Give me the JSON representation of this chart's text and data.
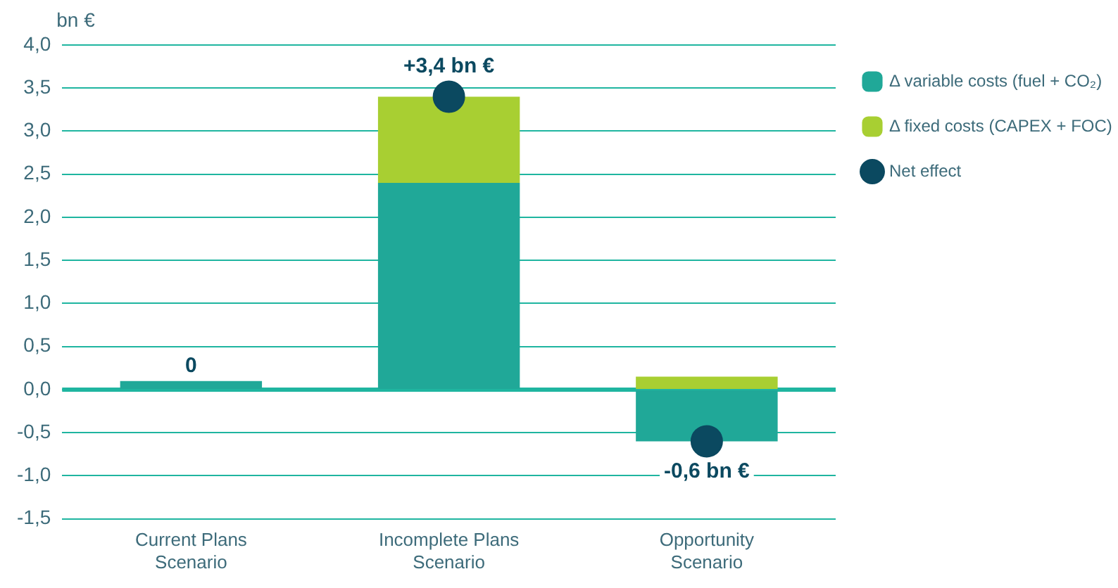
{
  "chart_data": {
    "type": "bar",
    "stacked": true,
    "ylabel": "bn €",
    "categories": [
      "Current Plans Scenario",
      "Incomplete Plans Scenario",
      "Opportunity Scenario"
    ],
    "series": [
      {
        "name": "Δ variable costs (fuel + CO₂)",
        "color": "#20a898",
        "values": [
          0.1,
          2.4,
          -0.6
        ]
      },
      {
        "name": "Δ fixed costs (CAPEX + FOC)",
        "color": "#a8cf32",
        "values": [
          0,
          1.0,
          0.15
        ]
      },
      {
        "name": "Net effect",
        "type": "scatter",
        "color": "#0b4960",
        "values": [
          null,
          3.4,
          -0.6
        ],
        "value_labels": [
          null,
          "+3,4 bn €",
          "-0,6 bn €"
        ]
      }
    ],
    "annotations": [
      {
        "text": "0",
        "x": "Current Plans Scenario",
        "y": 0.1
      }
    ],
    "ref_lines": [
      {
        "axis": "y",
        "value": 0,
        "color": "#1fb5a0"
      }
    ],
    "ylim": [
      -1.5,
      4.0
    ],
    "yticks": [
      {
        "value": -1.5,
        "label": "-1,5"
      },
      {
        "value": -1.0,
        "label": "-1,0"
      },
      {
        "value": -0.5,
        "label": "-0,5"
      },
      {
        "value": 0,
        "label": "0,0"
      },
      {
        "value": 0.5,
        "label": "0,5"
      },
      {
        "value": 1.0,
        "label": "1,0"
      },
      {
        "value": 1.5,
        "label": "1,5"
      },
      {
        "value": 2.0,
        "label": "2,0"
      },
      {
        "value": 2.5,
        "label": "2,5"
      },
      {
        "value": 3.0,
        "label": "3,0"
      },
      {
        "value": 3.5,
        "label": "3,5"
      },
      {
        "value": 4.0,
        "label": "4,0"
      }
    ],
    "grid": "y",
    "legend": "right",
    "marker": "circle"
  }
}
